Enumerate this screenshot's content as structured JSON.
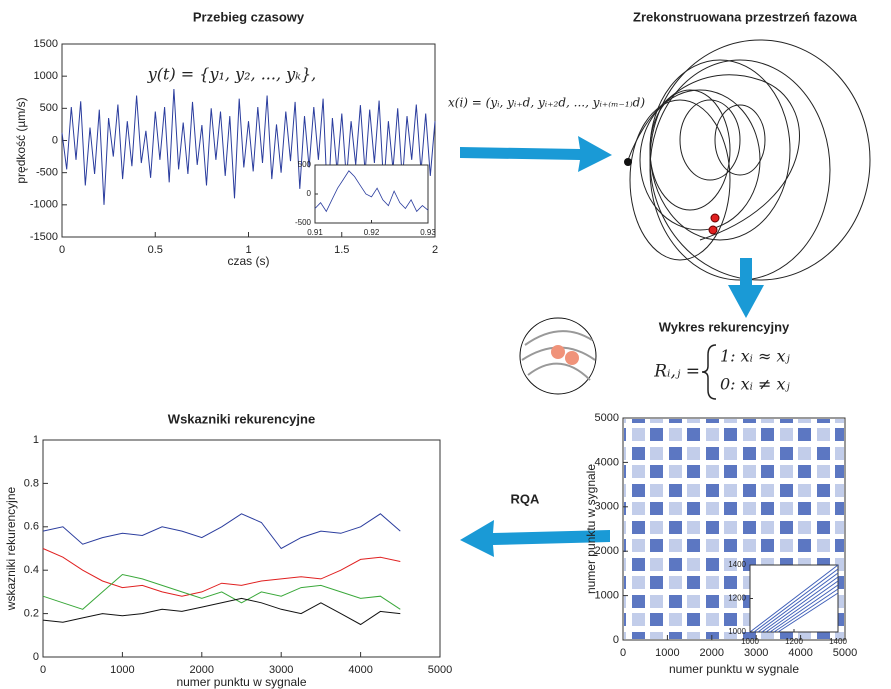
{
  "chart_data": [
    {
      "type": "line",
      "title": "Przebieg czasowy",
      "annotation": "y(t) = {y₁, y₂, ..., yₖ},",
      "x_label": "czas (s)",
      "y_label": "prędkość (µm/s)",
      "x": [
        0,
        0.025,
        0.05,
        0.075,
        0.1,
        0.125,
        0.15,
        0.175,
        0.2,
        0.225,
        0.25,
        0.275,
        0.3,
        0.325,
        0.35,
        0.375,
        0.4,
        0.425,
        0.45,
        0.475,
        0.5,
        0.525,
        0.55,
        0.575,
        0.6,
        0.625,
        0.65,
        0.675,
        0.7,
        0.725,
        0.75,
        0.775,
        0.8,
        0.825,
        0.85,
        0.875,
        0.9,
        0.925,
        0.95,
        0.975,
        1,
        1.025,
        1.05,
        1.075,
        1.1,
        1.125,
        1.15,
        1.175,
        1.2,
        1.225,
        1.25,
        1.275,
        1.3,
        1.325,
        1.35,
        1.375,
        1.4,
        1.425,
        1.45,
        1.475,
        1.5,
        1.525,
        1.55,
        1.575,
        1.6,
        1.625,
        1.65,
        1.675,
        1.7,
        1.725,
        1.75,
        1.775,
        1.8,
        1.825,
        1.85,
        1.875,
        1.9,
        1.925,
        1.95,
        1.975,
        2
      ],
      "series": [
        {
          "color": "#2b3d9e",
          "values": [
            120,
            -450,
            520,
            -300,
            610,
            -700,
            200,
            -520,
            480,
            -1000,
            350,
            -250,
            560,
            -600,
            300,
            -400,
            700,
            -350,
            150,
            -580,
            450,
            -300,
            520,
            -650,
            800,
            -450,
            280,
            -520,
            600,
            -380,
            240,
            -700,
            500,
            -300,
            450,
            -550,
            380,
            -900,
            650,
            -420,
            300,
            -480,
            520,
            -350,
            700,
            -600,
            250,
            -500,
            450,
            -320,
            600,
            -750,
            380,
            -420,
            520,
            -300,
            650,
            -1050,
            350,
            -480,
            420,
            -600,
            300,
            -380,
            550,
            -500,
            480,
            -350,
            620,
            -720,
            300,
            -450,
            500,
            -620,
            380,
            -300,
            560,
            -480,
            420,
            -550,
            300
          ]
        }
      ],
      "xlim": [
        0,
        2
      ],
      "ylim": [
        -1500,
        1500
      ],
      "xticks": [
        0,
        0.5,
        1,
        1.5,
        2
      ],
      "yticks": [
        -1500,
        -1000,
        -500,
        0,
        500,
        1000,
        1500
      ]
    },
    {
      "type": "line",
      "x": [
        0.91,
        0.911,
        0.912,
        0.913,
        0.914,
        0.915,
        0.916,
        0.917,
        0.918,
        0.919,
        0.92,
        0.921,
        0.922,
        0.923,
        0.924,
        0.925,
        0.926,
        0.927,
        0.928,
        0.929,
        0.93
      ],
      "series": [
        {
          "color": "#2b3d9e",
          "values": [
            -250,
            -150,
            -300,
            -100,
            100,
            250,
            400,
            300,
            150,
            0,
            -50,
            100,
            -100,
            -200,
            50,
            -150,
            -250,
            -100,
            -300,
            -200,
            -280
          ]
        }
      ],
      "xlim": [
        0.91,
        0.93
      ],
      "ylim": [
        -500,
        500
      ],
      "xticks": [
        0.91,
        0.92,
        0.93
      ],
      "yticks": [
        -500,
        0,
        500
      ]
    },
    {
      "type": "recurrence",
      "title": "Wykres rekurencyjny",
      "formula_lhs": "Rᵢ,ⱼ =",
      "formula_cases": [
        "1: xᵢ ≈ xⱼ",
        "0: xᵢ ≠ xⱼ"
      ],
      "x_label": "numer punktu w sygnale",
      "y_label": "numer punktu w sygnale",
      "xlim": [
        0,
        5000
      ],
      "ylim": [
        0,
        5000
      ],
      "xticks": [
        0,
        1000,
        2000,
        3000,
        4000,
        5000
      ],
      "yticks": [
        0,
        1000,
        2000,
        3000,
        4000,
        5000
      ]
    },
    {
      "type": "recurrence",
      "xlim": [
        1000,
        1400
      ],
      "ylim": [
        1000,
        1400
      ],
      "xticks": [
        1000,
        1200,
        1400
      ],
      "yticks": [
        1000,
        1200,
        1400
      ]
    },
    {
      "type": "line",
      "title": "Wskazniki rekurencyjne",
      "x_label": "numer punktu w sygnale",
      "y_label": "wskazniki rekurencyjne",
      "x": [
        0,
        250,
        500,
        750,
        1000,
        1250,
        1500,
        1750,
        2000,
        2250,
        2500,
        2750,
        3000,
        3250,
        3500,
        3750,
        4000,
        4250,
        4500
      ],
      "series": [
        {
          "color": "#2b3d9e",
          "values": [
            0.58,
            0.6,
            0.52,
            0.55,
            0.57,
            0.56,
            0.6,
            0.58,
            0.55,
            0.6,
            0.66,
            0.62,
            0.5,
            0.55,
            0.58,
            0.57,
            0.6,
            0.66,
            0.58
          ]
        },
        {
          "color": "#e02020",
          "values": [
            0.5,
            0.46,
            0.4,
            0.35,
            0.32,
            0.33,
            0.3,
            0.28,
            0.3,
            0.34,
            0.33,
            0.35,
            0.36,
            0.37,
            0.36,
            0.4,
            0.45,
            0.46,
            0.44
          ]
        },
        {
          "color": "#3aa83a",
          "values": [
            0.28,
            0.25,
            0.22,
            0.3,
            0.38,
            0.36,
            0.33,
            0.3,
            0.27,
            0.3,
            0.25,
            0.3,
            0.28,
            0.32,
            0.33,
            0.3,
            0.27,
            0.28,
            0.22
          ]
        },
        {
          "color": "#111111",
          "values": [
            0.17,
            0.16,
            0.18,
            0.2,
            0.19,
            0.2,
            0.22,
            0.21,
            0.23,
            0.25,
            0.27,
            0.25,
            0.22,
            0.2,
            0.25,
            0.2,
            0.15,
            0.21,
            0.2
          ]
        }
      ],
      "xlim": [
        0,
        5000
      ],
      "ylim": [
        0,
        1
      ],
      "xticks": [
        0,
        1000,
        2000,
        3000,
        4000,
        5000
      ],
      "yticks": [
        0,
        0.2,
        0.4,
        0.6,
        0.8,
        1
      ]
    }
  ],
  "phase_space": {
    "title": "Zrekonstruowana przestrzeń fazowa",
    "formula": "x(i) = (yᵢ, yᵢ₊d, yᵢ₊₂d, ..., yᵢ₊₍ₘ₋₁₎d)"
  },
  "arrow_label": "RQA"
}
